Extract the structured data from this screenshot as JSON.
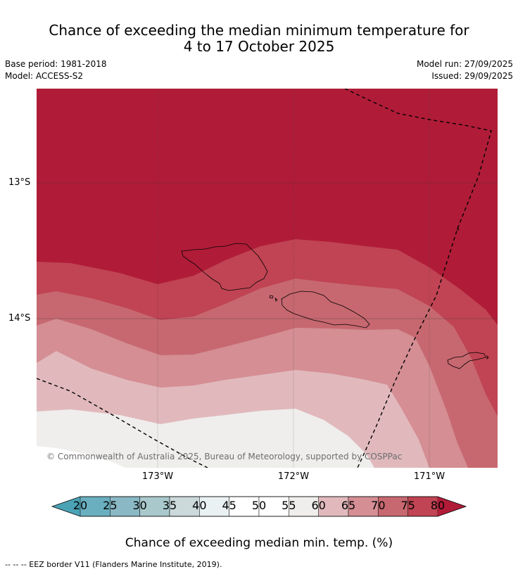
{
  "title": {
    "line1": "Chance of exceeding the median minimum temperature for",
    "line2": "4 to 17 October 2025"
  },
  "meta": {
    "base_period": "Base period: 1981-2018",
    "model": "Model: ACCESS-S2",
    "model_run": "Model run: 27/09/2025",
    "issued": "Issued: 29/09/2025"
  },
  "map": {
    "latitude_labels": [
      "13°S",
      "14°S"
    ],
    "longitude_labels": [
      "173°W",
      "172°W",
      "171°W"
    ],
    "copyright": "© Commonwealth of Australia 2025, Bureau of Meteorology, supported by COSPPac"
  },
  "colorbar": {
    "ticks": [
      "20",
      "25",
      "30",
      "35",
      "40",
      "45",
      "50",
      "55",
      "60",
      "65",
      "70",
      "75",
      "80"
    ],
    "colors": [
      "#4aa3b5",
      "#6aafc0",
      "#8ab8c4",
      "#a9c8cc",
      "#cbd9db",
      "#e9f1f2",
      "#ffffff",
      "#ffffff",
      "#efeeec",
      "#e1b9bd",
      "#d48e94",
      "#c76870",
      "#c04453",
      "#b01c38"
    ],
    "label": "Chance of exceeding median min. temp. (%)"
  },
  "footer": "--  --  -- EEZ border V11 (Flanders Marine Institute, 2019)."
}
